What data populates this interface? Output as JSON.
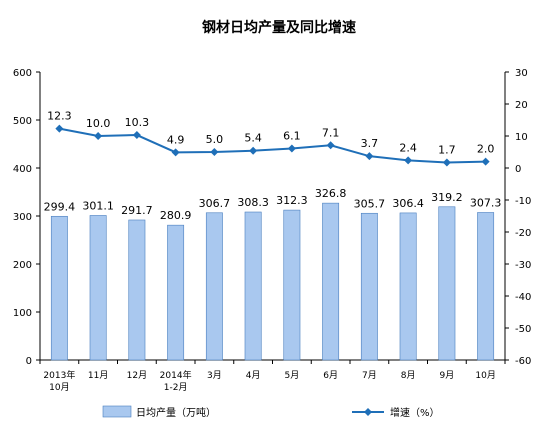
{
  "chart_data": {
    "type": "bar",
    "title": "钢材日均产量及同比增速",
    "categories": [
      [
        "2013年",
        "10月"
      ],
      [
        "11月"
      ],
      [
        "12月"
      ],
      [
        "2014年",
        "1-2月"
      ],
      [
        "3月"
      ],
      [
        "4月"
      ],
      [
        "5月"
      ],
      [
        "6月"
      ],
      [
        "7月"
      ],
      [
        "8月"
      ],
      [
        "9月"
      ],
      [
        "10月"
      ]
    ],
    "series": [
      {
        "name": "日均产量（万吨）",
        "type": "bar",
        "axis": "left",
        "values": [
          299.4,
          301.1,
          291.7,
          280.9,
          306.7,
          308.3,
          312.3,
          326.8,
          305.7,
          306.4,
          319.2,
          307.3
        ],
        "labels": [
          "299.4",
          "301.1",
          "291.7",
          "280.9",
          "306.7",
          "308.3",
          "312.3",
          "326.8",
          "305.7",
          "306.4",
          "319.2",
          "307.3"
        ],
        "color": "#a9c8ef"
      },
      {
        "name": "增速（%）",
        "type": "line",
        "axis": "right",
        "values": [
          12.3,
          10.0,
          10.3,
          4.9,
          5.0,
          5.4,
          6.1,
          7.1,
          3.7,
          2.4,
          1.7,
          2.0
        ],
        "labels": [
          "12.3",
          "10.0",
          "10.3",
          "4.9",
          "5.0",
          "5.4",
          "6.1",
          "7.1",
          "3.7",
          "2.4",
          "1.7",
          "2.0"
        ],
        "color": "#1f6fb8"
      }
    ],
    "y_left": {
      "min": 0,
      "max": 600,
      "ticks": [
        0,
        100,
        200,
        300,
        400,
        500,
        600
      ],
      "tick_labels": [
        "0",
        "100",
        "200",
        "300",
        "400",
        "500",
        "600"
      ]
    },
    "y_right": {
      "min": -60,
      "max": 30,
      "ticks": [
        -60,
        -50,
        -40,
        -30,
        -20,
        -10,
        0,
        10,
        20,
        30
      ],
      "tick_labels": [
        "-60",
        "-50",
        "-40",
        "-30",
        "-20",
        "-10",
        "0",
        "10",
        "20",
        "30"
      ]
    },
    "grid": false,
    "legend": "bottom"
  }
}
